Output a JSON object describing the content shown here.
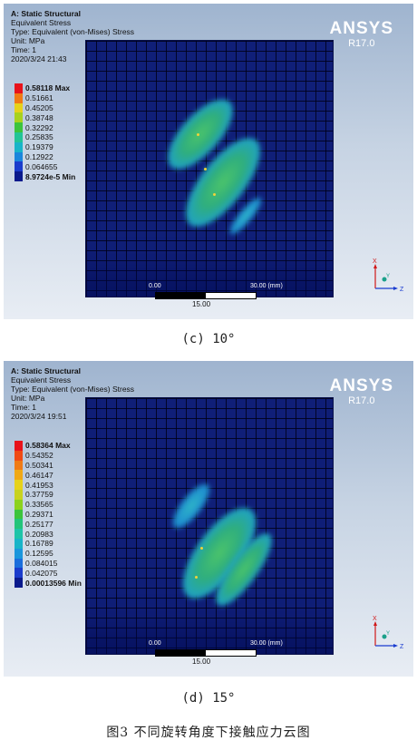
{
  "panels": [
    {
      "title": "A: Static Structural",
      "result": "Equivalent Stress",
      "type": "Type: Equivalent (von-Mises) Stress",
      "unit": "Unit: MPa",
      "time": "Time: 1",
      "date": "2020/3/24 21:43",
      "brand": "ANSYS",
      "version": "R17.0",
      "legend": [
        {
          "label": "0.58118 Max",
          "color": "#e8121a",
          "bold": true
        },
        {
          "label": "0.51661",
          "color": "#f07a14",
          "bold": false
        },
        {
          "label": "0.45205",
          "color": "#e6d21a",
          "bold": false
        },
        {
          "label": "0.38748",
          "color": "#a8d21e",
          "bold": false
        },
        {
          "label": "0.32292",
          "color": "#3cc43c",
          "bold": false
        },
        {
          "label": "0.25835",
          "color": "#22c496",
          "bold": false
        },
        {
          "label": "0.19379",
          "color": "#18b4c8",
          "bold": false
        },
        {
          "label": "0.12922",
          "color": "#1a86dc",
          "bold": false
        },
        {
          "label": "0.064655",
          "color": "#1a3ccc",
          "bold": false
        },
        {
          "label": "8.9724e-5 Min",
          "color": "#0a1a8c",
          "bold": true
        }
      ],
      "scale_start": "0.00",
      "scale_end": "30.00 (mm)",
      "scale_mid": "15.00",
      "caption": "(c)  10°"
    },
    {
      "title": "A: Static Structural",
      "result": "Equivalent Stress",
      "type": "Type: Equivalent (von-Mises) Stress",
      "unit": "Unit: MPa",
      "time": "Time: 1",
      "date": "2020/3/24 19:51",
      "brand": "ANSYS",
      "version": "R17.0",
      "legend": [
        {
          "label": "0.58364 Max",
          "color": "#e8121a",
          "bold": true
        },
        {
          "label": "0.54352",
          "color": "#f04a14",
          "bold": false
        },
        {
          "label": "0.50341",
          "color": "#f07a14",
          "bold": false
        },
        {
          "label": "0.46147",
          "color": "#f0a814",
          "bold": false
        },
        {
          "label": "0.41953",
          "color": "#e6d21a",
          "bold": false
        },
        {
          "label": "0.37759",
          "color": "#c8d21e",
          "bold": false
        },
        {
          "label": "0.33565",
          "color": "#8cd21e",
          "bold": false
        },
        {
          "label": "0.29371",
          "color": "#3cc43c",
          "bold": false
        },
        {
          "label": "0.25177",
          "color": "#22c47a",
          "bold": false
        },
        {
          "label": "0.20983",
          "color": "#1ec4a8",
          "bold": false
        },
        {
          "label": "0.16789",
          "color": "#18b4c8",
          "bold": false
        },
        {
          "label": "0.12595",
          "color": "#1a96dc",
          "bold": false
        },
        {
          "label": "0.084015",
          "color": "#1a6edc",
          "bold": false
        },
        {
          "label": "0.042075",
          "color": "#1a3ccc",
          "bold": false
        },
        {
          "label": "0.00013596 Min",
          "color": "#0a1a8c",
          "bold": true
        }
      ],
      "scale_start": "0.00",
      "scale_end": "30.00 (mm)",
      "scale_mid": "15.00",
      "caption": "(d)  15°"
    }
  ],
  "triad": {
    "x": "X",
    "y": "Y",
    "z": "Z"
  },
  "figure_caption": "图3 不同旋转角度下接触应力云图"
}
